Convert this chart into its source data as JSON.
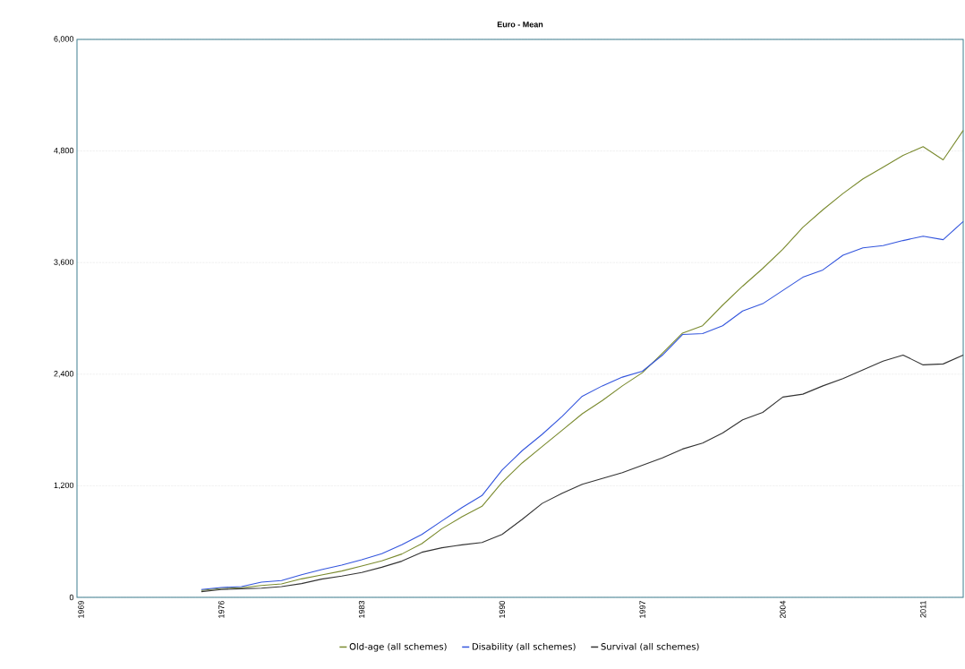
{
  "chart_data": {
    "type": "line",
    "title": "Euro - Mean",
    "x": [
      1975,
      1976,
      1977,
      1978,
      1979,
      1980,
      1981,
      1982,
      1983,
      1984,
      1985,
      1986,
      1987,
      1988,
      1989,
      1990,
      1991,
      1992,
      1993,
      1994,
      1995,
      1996,
      1997,
      1998,
      1999,
      2000,
      2001,
      2002,
      2003,
      2004,
      2005,
      2006,
      2007,
      2008,
      2009,
      2010,
      2011,
      2012,
      2013
    ],
    "series": [
      {
        "name": "Old-age (all schemes)",
        "color": "#7a8a2e",
        "values": [
          74,
          96,
          103,
          128,
          144,
          199,
          241,
          283,
          337,
          392,
          466,
          578,
          738,
          867,
          979,
          1236,
          1445,
          1621,
          1798,
          1974,
          2116,
          2274,
          2416,
          2625,
          2842,
          2921,
          3142,
          3347,
          3537,
          3742,
          3979,
          4168,
          4342,
          4500,
          4626,
          4753,
          4847,
          4705,
          5021
        ]
      },
      {
        "name": "Disability (all schemes)",
        "color": "#3355dd",
        "values": [
          84,
          106,
          116,
          164,
          180,
          244,
          299,
          347,
          405,
          469,
          565,
          677,
          822,
          966,
          1095,
          1368,
          1577,
          1753,
          1946,
          2163,
          2274,
          2368,
          2432,
          2605,
          2826,
          2836,
          2921,
          3079,
          3158,
          3300,
          3442,
          3521,
          3679,
          3758,
          3783,
          3837,
          3884,
          3846,
          4042
        ]
      },
      {
        "name": "Survival (all schemes)",
        "color": "#333333",
        "values": [
          61,
          84,
          93,
          99,
          116,
          148,
          196,
          228,
          267,
          324,
          389,
          485,
          533,
          565,
          590,
          677,
          838,
          1010,
          1120,
          1216,
          1279,
          1342,
          1421,
          1500,
          1595,
          1658,
          1768,
          1910,
          1989,
          2154,
          2185,
          2274,
          2353,
          2447,
          2540,
          2605,
          2500,
          2510,
          2605
        ]
      }
    ],
    "xlim": [
      1968.8,
      2013
    ],
    "xticks": [
      1969,
      1976,
      1983,
      1990,
      1997,
      2004,
      2011
    ],
    "ylim": [
      0,
      6000
    ],
    "yticks": [
      0,
      {
        "value": 1200,
        "label": "1,200"
      },
      {
        "value": 2400,
        "label": "2,400"
      },
      {
        "value": 3600,
        "label": "3,600"
      },
      {
        "value": 4800,
        "label": "4,800"
      },
      {
        "value": 6000,
        "label": "6,000"
      }
    ],
    "grid": "y",
    "legend": "bottom",
    "line_style": "solid"
  }
}
